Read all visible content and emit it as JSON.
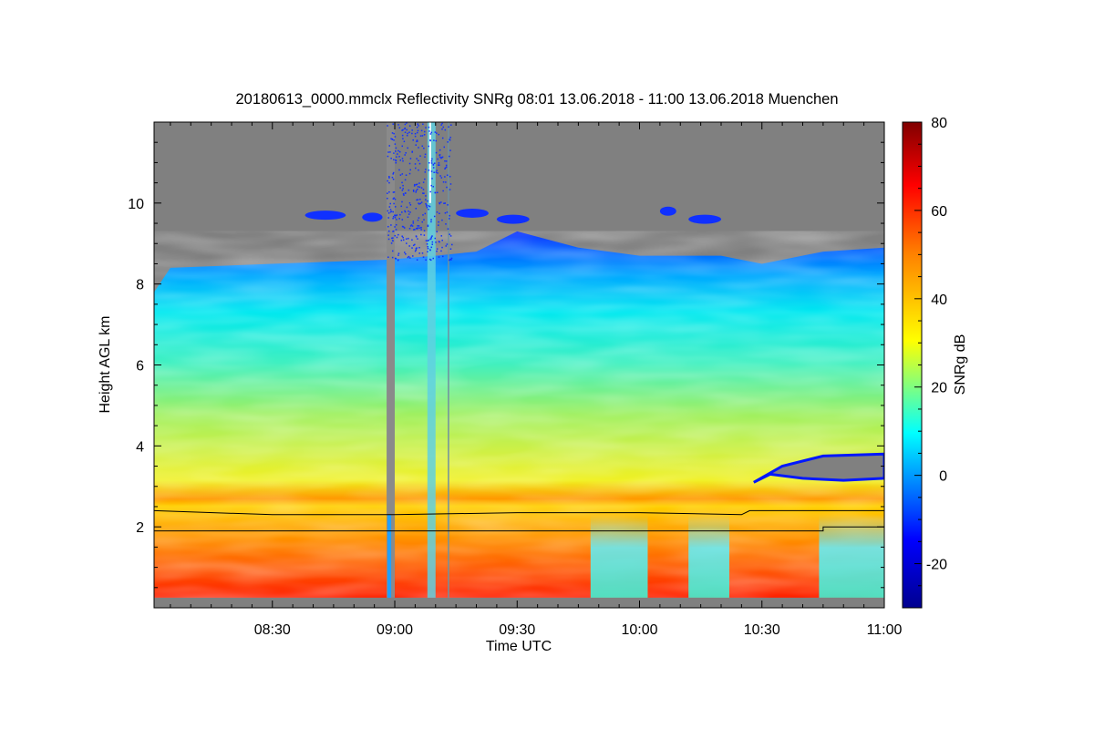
{
  "chart_data": {
    "type": "heatmap",
    "title": "20180613_0000.mmclx Reflectivity SNRg   08:01 13.06.2018 - 11:00 13.06.2018 Muenchen",
    "xlabel": "Time UTC",
    "ylabel": "Height AGL km",
    "colorbar_label": "SNRg dB",
    "xlim": [
      "08:01",
      "11:00"
    ],
    "ylim": [
      0,
      12
    ],
    "x_ticks": [
      "08:30",
      "09:00",
      "09:30",
      "10:00",
      "10:30",
      "11:00"
    ],
    "y_ticks": [
      "2",
      "4",
      "6",
      "8",
      "10"
    ],
    "colorbar_range": [
      -30,
      80
    ],
    "colorbar_ticks": [
      "-20",
      "0",
      "20",
      "40",
      "60",
      "80"
    ],
    "colormap": [
      "#00008f",
      "#0000ff",
      "#00ffff",
      "#ffff00",
      "#ff8000",
      "#ff0000",
      "#800000"
    ],
    "no_signal_color": "#808080",
    "cloud_top_km": [
      {
        "time": "08:01",
        "km": 7.8
      },
      {
        "time": "08:05",
        "km": 8.4
      },
      {
        "time": "08:30",
        "km": 8.5
      },
      {
        "time": "08:58",
        "km": 8.6
      },
      {
        "time": "09:10",
        "km": 8.7
      },
      {
        "time": "09:20",
        "km": 8.8
      },
      {
        "time": "09:30",
        "km": 9.3
      },
      {
        "time": "09:45",
        "km": 8.9
      },
      {
        "time": "10:00",
        "km": 8.7
      },
      {
        "time": "10:20",
        "km": 8.7
      },
      {
        "time": "10:30",
        "km": 8.5
      },
      {
        "time": "10:45",
        "km": 8.8
      },
      {
        "time": "11:00",
        "km": 8.9
      }
    ],
    "melting_layer_km": [
      {
        "time": "08:01",
        "km": 2.4
      },
      {
        "time": "08:30",
        "km": 2.3
      },
      {
        "time": "09:00",
        "km": 2.3
      },
      {
        "time": "09:30",
        "km": 2.35
      },
      {
        "time": "10:00",
        "km": 2.35
      },
      {
        "time": "10:25",
        "km": 2.3
      },
      {
        "time": "10:27",
        "km": 2.4
      },
      {
        "time": "11:00",
        "km": 2.4
      }
    ],
    "step_line_km": [
      {
        "time": "08:01",
        "km": 1.9
      },
      {
        "time": "10:45",
        "km": 1.9
      },
      {
        "time": "10:45",
        "km": 2.0
      },
      {
        "time": "11:00",
        "km": 2.0
      }
    ]
  }
}
